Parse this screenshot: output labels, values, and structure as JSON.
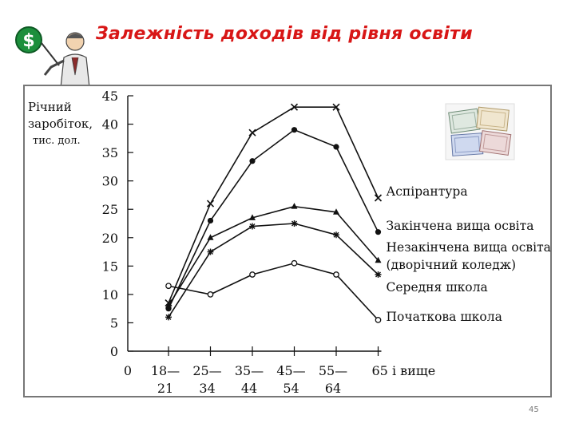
{
  "slide": {
    "title": "Залежність доходів від рівня освіти",
    "page_number": "45",
    "icon_text": "$"
  },
  "chart_data": {
    "type": "line",
    "ylabel": [
      "Річний",
      "заробіток,",
      "тис. дол."
    ],
    "xlabel": "",
    "ylim": [
      0,
      45
    ],
    "yticks": [
      0,
      5,
      10,
      15,
      20,
      25,
      30,
      35,
      40,
      45
    ],
    "x_tick_labels": [
      {
        "top": "0",
        "bottom": ""
      },
      {
        "top": "18—",
        "bottom": "21"
      },
      {
        "top": "25—",
        "bottom": "34"
      },
      {
        "top": "35—",
        "bottom": "44"
      },
      {
        "top": "45—",
        "bottom": "54"
      },
      {
        "top": "55—",
        "bottom": "64"
      },
      {
        "top": "65 і вище",
        "bottom": ""
      }
    ],
    "categories": [
      "18—21",
      "25—34",
      "35—44",
      "45—54",
      "55—64",
      "65 і вище"
    ],
    "series": [
      {
        "name": "Аспірантура",
        "marker": "x",
        "values": [
          8.5,
          26,
          38.5,
          43,
          43,
          27
        ]
      },
      {
        "name": "Закінчена вища освіта",
        "marker": "dot",
        "values": [
          7.5,
          23,
          33.5,
          39,
          36,
          21
        ]
      },
      {
        "name": "Незакінчена вища освіта (дворічний коледж)",
        "label_lines": [
          "Незакінчена вища освіта",
          "(дворічний коледж)"
        ],
        "marker": "triangle",
        "values": [
          8,
          20,
          23.5,
          25.5,
          24.5,
          16
        ]
      },
      {
        "name": "Середня школа",
        "marker": "star",
        "values": [
          6,
          17.5,
          22,
          22.5,
          20.5,
          13.5
        ]
      },
      {
        "name": "Початкова школа",
        "marker": "dot-open",
        "values": [
          11.5,
          10,
          13.5,
          15.5,
          13.5,
          5.5
        ]
      }
    ]
  }
}
